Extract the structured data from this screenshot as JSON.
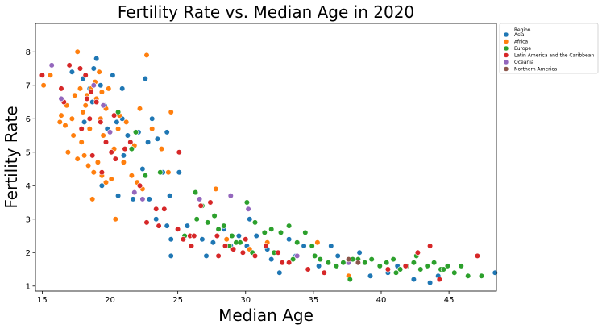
{
  "chart_data": {
    "type": "scatter",
    "title": "Fertility Rate vs. Median Age in 2020",
    "xlabel": "Median Age",
    "ylabel": "Fertility Rate",
    "xlim": [
      14.5,
      48.5
    ],
    "ylim": [
      0.85,
      8.85
    ],
    "xticks": [
      15,
      20,
      25,
      30,
      35,
      40,
      45
    ],
    "yticks": [
      1,
      2,
      3,
      4,
      5,
      6,
      7,
      8
    ],
    "grid": false,
    "legend": {
      "title": "Region",
      "placement": "outside-top-right"
    },
    "series": [
      {
        "name": "Asia",
        "color": "#1f77b4",
        "points": [
          [
            17.2,
            7.4
          ],
          [
            18.0,
            7.2
          ],
          [
            18.5,
            6.9
          ],
          [
            19.0,
            7.8
          ],
          [
            19.3,
            7.0
          ],
          [
            20.2,
            7.3
          ],
          [
            20.9,
            6.9
          ],
          [
            18.7,
            6.5
          ],
          [
            19.6,
            6.4
          ],
          [
            18.1,
            5.9
          ],
          [
            19.8,
            5.7
          ],
          [
            20.5,
            5.9
          ],
          [
            21.3,
            5.5
          ],
          [
            22.1,
            5.6
          ],
          [
            22.8,
            5.3
          ],
          [
            23.5,
            5.4
          ],
          [
            24.2,
            5.6
          ],
          [
            21.0,
            4.9
          ],
          [
            22.4,
            4.5
          ],
          [
            23.9,
            4.4
          ],
          [
            25.1,
            4.4
          ],
          [
            19.4,
            4.0
          ],
          [
            20.6,
            3.7
          ],
          [
            21.7,
            3.6
          ],
          [
            22.9,
            3.6
          ],
          [
            24.4,
            3.7
          ],
          [
            23.4,
            3.0
          ],
          [
            24.2,
            2.8
          ],
          [
            24.5,
            2.4
          ],
          [
            24.5,
            1.9
          ],
          [
            25.7,
            2.8
          ],
          [
            26.8,
            2.4
          ],
          [
            27.6,
            2.3
          ],
          [
            28.4,
            2.7
          ],
          [
            28.9,
            2.2
          ],
          [
            29.5,
            2.5
          ],
          [
            30.3,
            3.0
          ],
          [
            30.8,
            2.5
          ],
          [
            31.6,
            2.1
          ],
          [
            32.5,
            1.4
          ],
          [
            33.2,
            2.4
          ],
          [
            33.7,
            1.9
          ],
          [
            34.3,
            2.2
          ],
          [
            35.4,
            1.6
          ],
          [
            36.3,
            2.2
          ],
          [
            38.4,
            2.0
          ],
          [
            39.2,
            1.3
          ],
          [
            40.5,
            1.4
          ],
          [
            41.2,
            1.6
          ],
          [
            42.4,
            1.2
          ],
          [
            43.6,
            1.1
          ],
          [
            44.2,
            1.3
          ],
          [
            48.4,
            1.4
          ],
          [
            27.1,
            1.9
          ],
          [
            30.1,
            2.2
          ],
          [
            31.9,
            1.8
          ],
          [
            36.8,
            1.9
          ],
          [
            23.1,
            6.0
          ],
          [
            20.9,
            6.0
          ],
          [
            22.6,
            7.2
          ],
          [
            18.8,
            7.5
          ]
        ]
      },
      {
        "name": "Africa",
        "color": "#ff7f0e",
        "points": [
          [
            15.1,
            7.0
          ],
          [
            15.6,
            7.3
          ],
          [
            16.3,
            5.9
          ],
          [
            16.7,
            5.8
          ],
          [
            16.9,
            5.0
          ],
          [
            17.2,
            6.0
          ],
          [
            17.6,
            8.0
          ],
          [
            17.8,
            6.9
          ],
          [
            18.0,
            6.2
          ],
          [
            18.3,
            6.7
          ],
          [
            18.6,
            6.9
          ],
          [
            18.9,
            7.1
          ],
          [
            19.2,
            7.4
          ],
          [
            19.4,
            6.8
          ],
          [
            19.7,
            6.3
          ],
          [
            19.9,
            6.9
          ],
          [
            17.6,
            4.8
          ],
          [
            18.1,
            4.9
          ],
          [
            18.4,
            4.6
          ],
          [
            18.8,
            4.4
          ],
          [
            19.1,
            4.7
          ],
          [
            19.4,
            4.3
          ],
          [
            19.7,
            4.1
          ],
          [
            20.1,
            4.2
          ],
          [
            18.7,
            3.6
          ],
          [
            20.4,
            3.0
          ],
          [
            20.6,
            5.7
          ],
          [
            21.2,
            5.9
          ],
          [
            21.6,
            4.3
          ],
          [
            22.0,
            4.1
          ],
          [
            22.4,
            3.9
          ],
          [
            22.7,
            7.9
          ],
          [
            23.1,
            5.7
          ],
          [
            23.8,
            5.1
          ],
          [
            24.3,
            4.4
          ],
          [
            24.5,
            6.2
          ],
          [
            17.3,
            5.5
          ],
          [
            16.8,
            6.4
          ],
          [
            17.9,
            5.3
          ],
          [
            18.5,
            5.7
          ],
          [
            19.3,
            6.0
          ],
          [
            20.7,
            6.1
          ],
          [
            21.8,
            5.2
          ],
          [
            22.2,
            6.3
          ],
          [
            27.8,
            3.9
          ],
          [
            28.6,
            2.4
          ],
          [
            30.3,
            2.1
          ],
          [
            31.6,
            2.3
          ],
          [
            35.3,
            2.3
          ],
          [
            37.6,
            1.3
          ],
          [
            17.4,
            6.7
          ],
          [
            19.0,
            6.6
          ],
          [
            18.2,
            6.4
          ],
          [
            16.4,
            6.1
          ],
          [
            20.3,
            5.1
          ],
          [
            19.5,
            5.5
          ],
          [
            21.0,
            4.7
          ]
        ]
      },
      {
        "name": "Europe",
        "color": "#2ca02c",
        "points": [
          [
            20.6,
            6.2
          ],
          [
            21.6,
            5.1
          ],
          [
            22.6,
            4.3
          ],
          [
            23.7,
            4.4
          ],
          [
            26.3,
            3.8
          ],
          [
            26.8,
            3.4
          ],
          [
            27.7,
            3.1
          ],
          [
            28.0,
            2.7
          ],
          [
            28.4,
            2.8
          ],
          [
            29.0,
            2.5
          ],
          [
            29.6,
            2.3
          ],
          [
            30.1,
            3.5
          ],
          [
            30.7,
            2.9
          ],
          [
            31.4,
            2.6
          ],
          [
            31.9,
            2.7
          ],
          [
            32.6,
            2.6
          ],
          [
            33.2,
            2.8
          ],
          [
            33.8,
            2.3
          ],
          [
            34.4,
            2.6
          ],
          [
            34.9,
            2.2
          ],
          [
            35.5,
            1.8
          ],
          [
            36.1,
            1.7
          ],
          [
            36.7,
            1.6
          ],
          [
            37.2,
            1.7
          ],
          [
            37.7,
            1.2
          ],
          [
            38.3,
            1.8
          ],
          [
            38.8,
            1.7
          ],
          [
            39.3,
            1.8
          ],
          [
            39.9,
            1.6
          ],
          [
            40.4,
            1.7
          ],
          [
            40.9,
            1.8
          ],
          [
            41.4,
            1.5
          ],
          [
            41.9,
            1.6
          ],
          [
            42.4,
            1.7
          ],
          [
            42.9,
            1.5
          ],
          [
            43.4,
            1.6
          ],
          [
            43.9,
            1.7
          ],
          [
            44.4,
            1.5
          ],
          [
            44.9,
            1.6
          ],
          [
            45.4,
            1.4
          ],
          [
            45.9,
            1.6
          ],
          [
            46.4,
            1.3
          ],
          [
            47.4,
            1.3
          ],
          [
            25.5,
            2.5
          ],
          [
            26.4,
            3.0
          ],
          [
            27.2,
            2.9
          ],
          [
            28.8,
            2.2
          ],
          [
            29.3,
            2.3
          ],
          [
            30.5,
            2.0
          ],
          [
            32.1,
            2.0
          ],
          [
            33.5,
            1.8
          ],
          [
            35.1,
            1.9
          ],
          [
            37.9,
            1.8
          ],
          [
            41.1,
            1.4
          ],
          [
            42.6,
            1.9
          ],
          [
            44.6,
            1.5
          ],
          [
            21.9,
            5.6
          ]
        ]
      },
      {
        "name": "Latin America and the Caribbean",
        "color": "#d62728",
        "points": [
          [
            15.0,
            7.3
          ],
          [
            16.4,
            6.9
          ],
          [
            17.0,
            7.6
          ],
          [
            17.8,
            7.5
          ],
          [
            18.2,
            7.3
          ],
          [
            18.6,
            6.8
          ],
          [
            19.0,
            6.5
          ],
          [
            18.5,
            6.0
          ],
          [
            17.9,
            5.7
          ],
          [
            19.3,
            5.9
          ],
          [
            20.3,
            6.1
          ],
          [
            19.7,
            5.3
          ],
          [
            18.7,
            4.9
          ],
          [
            19.4,
            4.4
          ],
          [
            20.4,
            4.8
          ],
          [
            21.1,
            5.1
          ],
          [
            21.5,
            5.3
          ],
          [
            22.7,
            2.9
          ],
          [
            23.4,
            3.3
          ],
          [
            24.0,
            3.3
          ],
          [
            25.1,
            5.0
          ],
          [
            25.4,
            2.4
          ],
          [
            25.9,
            2.5
          ],
          [
            26.2,
            2.5
          ],
          [
            26.7,
            3.4
          ],
          [
            27.4,
            3.5
          ],
          [
            27.9,
            2.5
          ],
          [
            28.5,
            2.2
          ],
          [
            29.1,
            2.1
          ],
          [
            29.8,
            2.0
          ],
          [
            30.7,
            1.9
          ],
          [
            31.5,
            2.2
          ],
          [
            32.4,
            2.0
          ],
          [
            33.2,
            1.7
          ],
          [
            34.6,
            1.5
          ],
          [
            35.8,
            1.4
          ],
          [
            40.5,
            1.5
          ],
          [
            41.8,
            1.6
          ],
          [
            42.7,
            2.0
          ],
          [
            43.6,
            2.2
          ],
          [
            44.3,
            1.2
          ],
          [
            47.1,
            1.9
          ],
          [
            16.6,
            6.5
          ],
          [
            18.3,
            6.6
          ],
          [
            20.1,
            5.0
          ],
          [
            22.2,
            4.0
          ],
          [
            23.6,
            2.8
          ],
          [
            26.0,
            2.2
          ],
          [
            28.0,
            1.9
          ],
          [
            30.0,
            2.4
          ],
          [
            32.7,
            1.7
          ],
          [
            25.0,
            2.7
          ]
        ]
      },
      {
        "name": "Oceania",
        "color": "#9467bd",
        "points": [
          [
            15.7,
            7.6
          ],
          [
            16.4,
            6.6
          ],
          [
            18.8,
            7.0
          ],
          [
            19.5,
            6.4
          ],
          [
            20.0,
            5.6
          ],
          [
            21.8,
            3.8
          ],
          [
            22.4,
            3.6
          ],
          [
            28.9,
            3.7
          ],
          [
            30.2,
            3.3
          ],
          [
            33.8,
            1.9
          ],
          [
            37.6,
            1.7
          ],
          [
            26.6,
            3.6
          ]
        ]
      },
      {
        "name": "Northern America",
        "color": "#8c564b",
        "points": [
          [
            37.6,
            1.8
          ],
          [
            38.3,
            1.7
          ]
        ]
      }
    ]
  }
}
